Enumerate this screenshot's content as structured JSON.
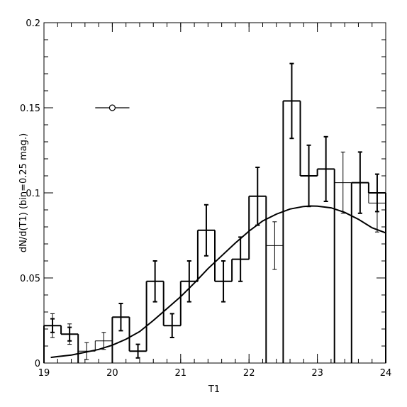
{
  "chart_data": {
    "type": "histogram",
    "xlabel": "T1",
    "ylabel": "dN/d(T1)  (bin=0.25  mag.)",
    "xlim": [
      19,
      24
    ],
    "ylim": [
      0,
      0.2
    ],
    "xticks": [
      {
        "v": 19,
        "label": "19"
      },
      {
        "v": 20,
        "label": "20"
      },
      {
        "v": 21,
        "label": "21"
      },
      {
        "v": 22,
        "label": "22"
      },
      {
        "v": 23,
        "label": "23"
      },
      {
        "v": 24,
        "label": "24"
      }
    ],
    "yticks": [
      {
        "v": 0,
        "label": "0"
      },
      {
        "v": 0.05,
        "label": "0.05"
      },
      {
        "v": 0.1,
        "label": "0.1"
      },
      {
        "v": 0.15,
        "label": "0.15"
      },
      {
        "v": 0.2,
        "label": "0.2"
      }
    ],
    "xminor_step": 0.2,
    "yminor_step": 0.01,
    "grid": false,
    "series": [
      {
        "style": "thin",
        "bins": [
          {
            "x0": 19.0,
            "x1": 19.25,
            "value": 0.022,
            "err": 0.007
          },
          {
            "x0": 19.25,
            "x1": 19.5,
            "value": 0.017,
            "err": 0.006
          },
          {
            "x0": 19.5,
            "x1": 19.75,
            "value": 0.007,
            "err": 0.005
          },
          {
            "x0": 19.75,
            "x1": 20.0,
            "value": 0.013,
            "err": 0.005
          },
          {
            "x0": 20.0,
            "x1": 20.25,
            "value": 0.027,
            "err": 0.008
          },
          {
            "x0": 20.25,
            "x1": 20.5,
            "value": 0.007,
            "err": 0.004
          },
          {
            "x0": 20.5,
            "x1": 20.75,
            "value": 0.048,
            "err": 0.012
          },
          {
            "x0": 20.75,
            "x1": 21.0,
            "value": 0.022,
            "err": 0.007
          },
          {
            "x0": 21.0,
            "x1": 21.25,
            "value": 0.048,
            "err": 0.012
          },
          {
            "x0": 21.25,
            "x1": 21.5,
            "value": 0.078,
            "err": 0.015
          },
          {
            "x0": 21.5,
            "x1": 21.75,
            "value": 0.048,
            "err": 0.012
          },
          {
            "x0": 21.75,
            "x1": 22.0,
            "value": 0.061,
            "err": 0.013
          },
          {
            "x0": 22.0,
            "x1": 22.25,
            "value": 0.098,
            "err": 0.017
          },
          {
            "x0": 22.25,
            "x1": 22.5,
            "value": 0.069,
            "err": 0.014
          },
          {
            "x0": 22.5,
            "x1": 22.75,
            "value": 0.154,
            "err": 0.022
          },
          {
            "x0": 22.75,
            "x1": 23.0,
            "value": 0.11,
            "err": 0.018
          },
          {
            "x0": 23.0,
            "x1": 23.25,
            "value": 0.114,
            "err": 0.019
          },
          {
            "x0": 23.25,
            "x1": 23.5,
            "value": 0.106,
            "err": 0.018
          },
          {
            "x0": 23.5,
            "x1": 23.75,
            "value": 0.106,
            "err": 0.018
          },
          {
            "x0": 23.75,
            "x1": 24.0,
            "value": 0.094,
            "err": 0.017
          }
        ]
      },
      {
        "style": "thick",
        "bins": [
          {
            "x0": 19.0,
            "x1": 19.25,
            "value": 0.022,
            "err": 0.004
          },
          {
            "x0": 19.25,
            "x1": 19.5,
            "value": 0.017,
            "err": 0.004
          },
          {
            "x0": 20.0,
            "x1": 20.25,
            "value": 0.027,
            "err": 0.008
          },
          {
            "x0": 20.25,
            "x1": 20.5,
            "value": 0.007,
            "err": 0.004
          },
          {
            "x0": 20.5,
            "x1": 20.75,
            "value": 0.048,
            "err": 0.012
          },
          {
            "x0": 20.75,
            "x1": 21.0,
            "value": 0.022,
            "err": 0.007
          },
          {
            "x0": 21.0,
            "x1": 21.25,
            "value": 0.048,
            "err": 0.012
          },
          {
            "x0": 21.25,
            "x1": 21.5,
            "value": 0.078,
            "err": 0.015
          },
          {
            "x0": 21.5,
            "x1": 21.75,
            "value": 0.048,
            "err": 0.012
          },
          {
            "x0": 21.75,
            "x1": 22.0,
            "value": 0.061,
            "err": 0.013
          },
          {
            "x0": 22.0,
            "x1": 22.25,
            "value": 0.098,
            "err": 0.017
          },
          {
            "x0": 22.5,
            "x1": 22.75,
            "value": 0.154,
            "err": 0.022
          },
          {
            "x0": 22.75,
            "x1": 23.0,
            "value": 0.11,
            "err": 0.018
          },
          {
            "x0": 23.0,
            "x1": 23.25,
            "value": 0.114,
            "err": 0.019
          },
          {
            "x0": 23.5,
            "x1": 23.75,
            "value": 0.106,
            "err": 0.018
          },
          {
            "x0": 23.75,
            "x1": 24.0,
            "value": 0.1,
            "err": 0.011
          }
        ]
      }
    ],
    "curve": {
      "x": [
        19.1,
        19.2,
        19.4,
        19.6,
        19.8,
        20.0,
        20.2,
        20.4,
        20.6,
        20.8,
        21.0,
        21.2,
        21.4,
        21.6,
        21.8,
        22.0,
        22.2,
        22.4,
        22.6,
        22.8,
        22.9,
        23.0,
        23.2,
        23.4,
        23.6,
        23.8,
        24.0
      ],
      "y": [
        0.0033,
        0.0038,
        0.0047,
        0.0063,
        0.008,
        0.0105,
        0.014,
        0.0185,
        0.025,
        0.032,
        0.039,
        0.047,
        0.0555,
        0.063,
        0.0705,
        0.0775,
        0.0835,
        0.0875,
        0.0905,
        0.092,
        0.0923,
        0.0922,
        0.0912,
        0.0885,
        0.0845,
        0.0795,
        0.0765
      ]
    },
    "point_marker": {
      "x": 20.0,
      "y": 0.15,
      "xerr": 0.25,
      "marker": "open-circle"
    }
  }
}
